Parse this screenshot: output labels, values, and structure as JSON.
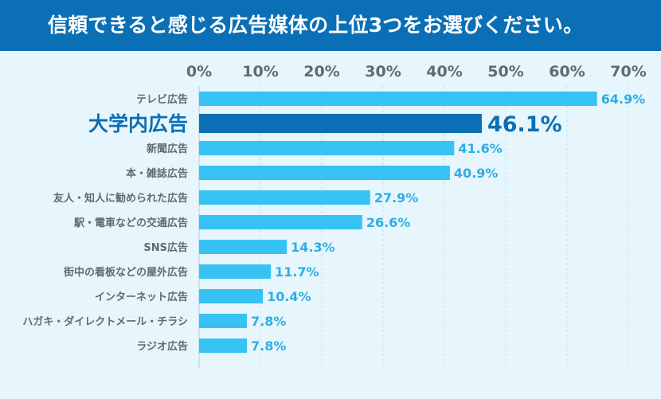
{
  "title": "信頼できると感じる広告媒体の上位3つをお選びください。",
  "chart_data": {
    "type": "bar",
    "orientation": "horizontal",
    "title": "信頼できると感じる広告媒体の上位3つをお選びください。",
    "xlim": [
      0,
      70
    ],
    "ticks": [
      0,
      10,
      20,
      30,
      40,
      50,
      60,
      70
    ],
    "tick_suffix": "%",
    "highlight": "大学内広告",
    "colors": {
      "bar": "#36c3f4",
      "highlight": "#0b6fb5"
    },
    "categories": [
      "テレビ広告",
      "大学内広告",
      "新聞広告",
      "本・雑誌広告",
      "友人・知人に勧められた広告",
      "駅・電車などの交通広告",
      "SNS広告",
      "街中の看板などの屋外広告",
      "インターネット広告",
      "ハガキ・ダイレクトメール・チラシ",
      "ラジオ広告"
    ],
    "values": [
      64.9,
      46.1,
      41.6,
      40.9,
      27.9,
      26.6,
      14.3,
      11.7,
      10.4,
      7.8,
      7.8
    ],
    "labels": [
      "64.9%",
      "46.1%",
      "41.6%",
      "40.9%",
      "27.9%",
      "26.6%",
      "14.3%",
      "11.7%",
      "10.4%",
      "7.8%",
      "7.8%"
    ]
  }
}
